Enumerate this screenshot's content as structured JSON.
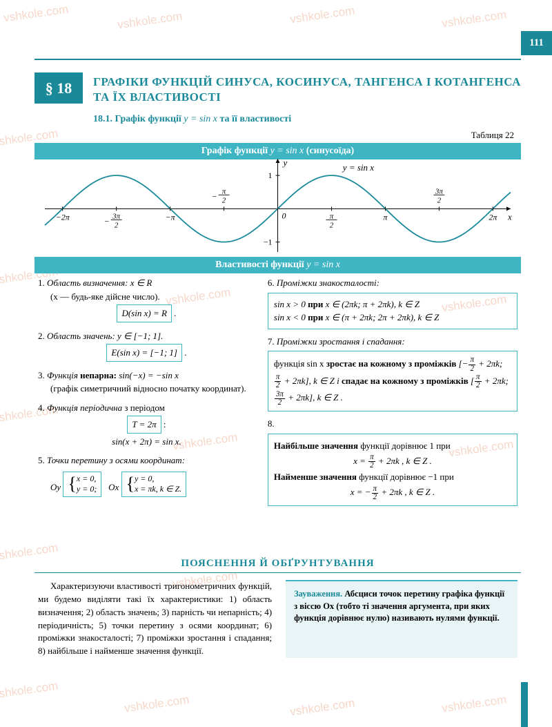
{
  "page_number": "111",
  "section_badge": "§ 18",
  "main_title": "ГРАФІКИ ФУНКЦІЙ СИНУСА, КОСИНУСА, ТАНГЕНСА І КОТАНГЕНСА ТА ЇХ ВЛАСТИВОСТІ",
  "subtitle_num": "18.1.",
  "subtitle_pre": "Графік функції",
  "subtitle_formula": "y = sin x",
  "subtitle_post": "та її властивості",
  "table_label": "Таблиця 22",
  "band1_pre": "Графік функції",
  "band1_formula": "y = sin x",
  "band1_post": "(синусоїда)",
  "band2_pre": "Властивості функції",
  "band2_formula": "y = sin x",
  "chart": {
    "type": "line",
    "curve_color": "#1a8a9a",
    "axis_color": "#000000",
    "background": "#ffffff",
    "x_range": [
      -6.8,
      6.8
    ],
    "y_range": [
      -1.3,
      1.5
    ],
    "x_ticks": [
      {
        "v": -6.283,
        "label": "−2π"
      },
      {
        "v": -4.712,
        "label": "−3π/2",
        "frac": true,
        "neg": true,
        "num": "3π",
        "den": "2"
      },
      {
        "v": -3.1416,
        "label": "−π"
      },
      {
        "v": -1.5708,
        "label": "−π/2",
        "frac": true,
        "neg": true,
        "num": "π",
        "den": "2"
      },
      {
        "v": 0,
        "label": "0"
      },
      {
        "v": 1.5708,
        "label": "π/2",
        "frac": true,
        "num": "π",
        "den": "2"
      },
      {
        "v": 3.1416,
        "label": "π"
      },
      {
        "v": 4.712,
        "label": "3π/2",
        "frac": true,
        "num": "3π",
        "den": "2"
      },
      {
        "v": 6.283,
        "label": "2π"
      }
    ],
    "y_ticks": [
      {
        "v": 1,
        "label": "1"
      },
      {
        "v": -1,
        "label": "−1"
      }
    ],
    "y_axis_label": "y",
    "x_axis_label": "x",
    "function_label": "y = sin x",
    "line_width": 1.8
  },
  "col1": {
    "p1_lead": "1.",
    "p1_head": "Область визначення:",
    "p1_math": "x ∈ R",
    "p1_note": "(x — будь-яке дійсне число).",
    "p1_box": "D(sin x) = R",
    "p2_lead": "2.",
    "p2_head": "Область значень:",
    "p2_math": "y ∈ [−1; 1].",
    "p2_box": "E(sin x) = [−1; 1]",
    "p3_lead": "3.",
    "p3_text_a": "Функція",
    "p3_text_b": "непарна:",
    "p3_math": "sin(−x) = −sin x",
    "p3_note": "(графік симетричний відносно початку координат).",
    "p4_lead": "4.",
    "p4_head": "Функція періодична",
    "p4_text": "з періодом",
    "p4_box": "T = 2π",
    "p4_math": "sin(x + 2π) = sin x.",
    "p5_lead": "5.",
    "p5_head": "Точки перетину з осями координат:",
    "p5_oy": "Oy",
    "p5_oy_r1": "x = 0,",
    "p5_oy_r2": "y = 0;",
    "p5_ox": "Ox",
    "p5_ox_r1": "y = 0,",
    "p5_ox_r2": "x = πk, k ∈ Z."
  },
  "col2": {
    "p6_lead": "6.",
    "p6_head": "Проміжки знакосталості:",
    "p6_box_l1_a": "sin x > 0",
    "p6_box_l1_b": "при",
    "p6_box_l1_c": "x ∈ (2πk; π + 2πk), k ∈ Z",
    "p6_box_l2_a": "sin x < 0",
    "p6_box_l2_b": "при",
    "p6_box_l2_c": "x ∈ (π + 2πk; 2π + 2πk), k ∈ Z",
    "p7_lead": "7.",
    "p7_head": "Проміжки зростання і спадання:",
    "p7_t1": "функція sin x",
    "p7_t2": "зростає на кожному з проміжків",
    "p7_int1_a": "π",
    "p7_int1_b": "2",
    "p7_t3": "k ∈ Z і",
    "p7_t4": "спадає на кожному з проміжків",
    "p7_int2_a": "3π",
    "p7_int2_b": "2",
    "p7_t5": "k ∈ Z .",
    "p8_lead": "8.",
    "p8_l1_a": "Найбільше значення",
    "p8_l1_b": "функції дорівнює 1 при",
    "p8_l1_math_a": "π",
    "p8_l1_math_b": "2",
    "p8_l1_c": "k ∈ Z .",
    "p8_l2_a": "Найменше значення",
    "p8_l2_b": "функції дорівнює −1 при",
    "p8_l2_c": "k ∈ Z ."
  },
  "explain_header": "ПОЯСНЕННЯ Й ОБҐРУНТУВАННЯ",
  "explain_left": "Характеризуючи властивості тригонометричних функцій, ми будемо виділяти такі їх характеристики: 1) область визначення; 2) область значень; 3) парність чи непарність; 4) періодичність; 5) точки перетину з осями координат; 6) проміжки знакосталості; 7) проміжки зростання і спадання; 8) найбільше і найменше значення функції.",
  "explain_right_lead": "Зауваження.",
  "explain_right_body": "Абсциси точок перетину графіка функції з віссю Ox (тобто ті значення аргумента, при яких функція дорівнює нулю) називають нулями функції.",
  "watermark_text": "vshkole.com",
  "colors": {
    "teal": "#1a8a9a",
    "teal_light": "#3fb5c4",
    "teal_bg": "#e8f4f5",
    "watermark": "rgba(230,140,100,0.35)"
  }
}
